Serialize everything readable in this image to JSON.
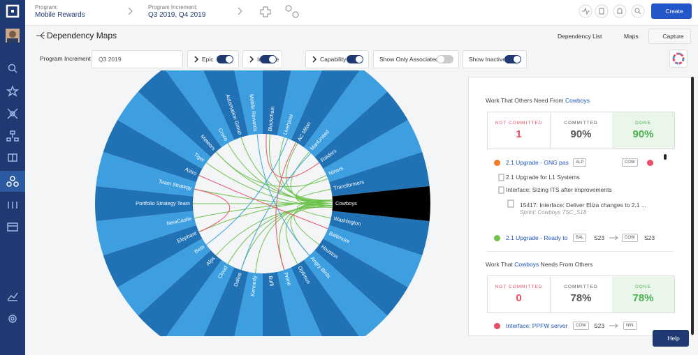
{
  "topbar": {
    "program_label": "Program:",
    "program": "Mobile Rewards",
    "pi_label": "Program Increment:",
    "pi": "Q3 2019, Q4 2019",
    "create": "Create"
  },
  "header": {
    "title": "Dependency Maps",
    "dependency_list": "Dependency List",
    "maps": "Maps",
    "capture": "Capture"
  },
  "filters": {
    "pi_label": "Program Increment :",
    "pi_value": "Q3 2019",
    "toggles": [
      {
        "label": "Epic",
        "on": true,
        "chevron": true
      },
      {
        "label": "Initiative",
        "on": true,
        "chevron": true
      },
      {
        "label": "Capability",
        "on": true,
        "chevron": true
      },
      {
        "label": "Show Only Associated",
        "on": false,
        "chevron": false
      },
      {
        "label": "Show Inactive",
        "on": true,
        "chevron": false
      }
    ]
  },
  "diagram": {
    "selected": "Cowboys",
    "teams": [
      "Mobile Rewards",
      "Blockchain",
      "Liverpool",
      "AC Milan",
      "ManUnited",
      "Raiders",
      "Niners",
      "Transformers",
      "Cowboys",
      "Washington",
      "Baltimore",
      "Houston",
      "Angry Birds",
      "Optimus",
      "Prime",
      "Buffi",
      "Kennedy",
      "Dallas",
      "Cloud",
      "Alps",
      "Beta",
      "Elephant",
      "NewCastle",
      "Portfolio Strategy Team",
      "Team Strategy",
      "Astro",
      "Tiger",
      "Meteors",
      "Croco",
      "Automation Group"
    ]
  },
  "panel": {
    "section1": {
      "before": "Work That Others Need From",
      "team": "Cowboys",
      "stats": [
        {
          "label": "NOT COMMITTED",
          "value": "1"
        },
        {
          "label": "COMMITTED",
          "value": "90%"
        },
        {
          "label": "DONE",
          "value": "90%"
        }
      ],
      "item1": {
        "title": "2.1 Upgrade - GNG pas",
        "dot_color": "#f07a28",
        "from": "ALP",
        "to": "COW",
        "to_dot_color": "#e94e63"
      },
      "children": [
        "2.1 Upgrade for L1 Systems",
        "Interface: Sizing ITS after improvements"
      ],
      "story": {
        "title": "15417: Interface: Deliver Eliza changes to 2.1 ...",
        "sprint": "Sprint: Cowboys TSC_S18"
      },
      "item2": {
        "title": "2.1 Upgrade - Ready to",
        "dot_color": "#6cc24a",
        "from": "BAL",
        "from_sprint": "S23",
        "to": "COW",
        "to_sprint": "S23"
      }
    },
    "section2": {
      "before": "Work That",
      "team": "Cowboys",
      "after": "Needs From Others",
      "stats": [
        {
          "label": "NOT COMMITTED",
          "value": "0"
        },
        {
          "label": "COMMITTED",
          "value": "78%"
        },
        {
          "label": "DONE",
          "value": "78%"
        }
      ],
      "item1": {
        "title": "Interface: PPFW server",
        "dot_color": "#e94e63",
        "from": "COW",
        "from_sprint": "S23",
        "to": "NIN."
      }
    }
  },
  "help": "Help"
}
